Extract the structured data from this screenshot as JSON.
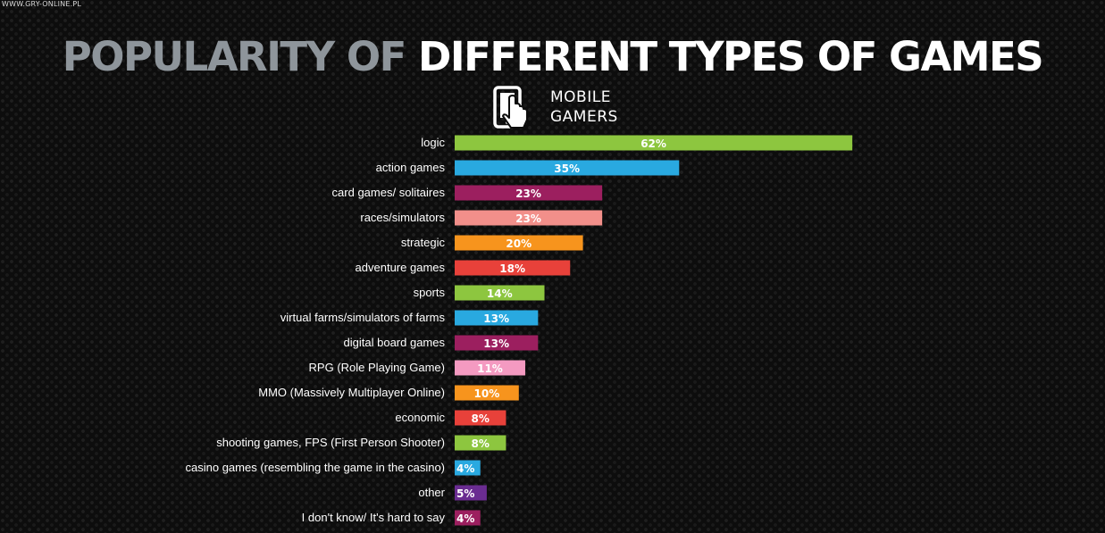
{
  "watermark": "WWW.GRY-ONLINE.PL",
  "title": {
    "part1": "POPULARITY OF ",
    "part2": "DIFFERENT TYPES OF GAMES"
  },
  "legend": {
    "line1": "MOBILE",
    "line2": "GAMERS",
    "icon": "phone-touch-icon"
  },
  "chart_data": {
    "type": "bar",
    "orientation": "horizontal",
    "categories": [
      "logic",
      "action games",
      "card games/ solitaires",
      "races/simulators",
      "strategic",
      "adventure games",
      "sports",
      "virtual farms/simulators of farms",
      "digital board games",
      "RPG (Role Playing Game)",
      "MMO (Massively Multiplayer Online)",
      "economic",
      "shooting games, FPS (First Person Shooter)",
      "casino games (resembling the game in the casino)",
      "other",
      "I don't know/ It's hard to say"
    ],
    "values": [
      62,
      35,
      23,
      23,
      20,
      18,
      14,
      13,
      13,
      11,
      10,
      8,
      8,
      4,
      5,
      4
    ],
    "labels": [
      "62%",
      "35%",
      "23%",
      "23%",
      "20%",
      "18%",
      "14%",
      "13%",
      "13%",
      "11%",
      "10%",
      "8%",
      "8%",
      "4%",
      "5%",
      "4%"
    ],
    "colors": [
      "#8dc63f",
      "#29a9e0",
      "#9c1f5f",
      "#f28f8a",
      "#f7941d",
      "#e8413a",
      "#8dc63f",
      "#29a9e0",
      "#9c1f5f",
      "#f49ac1",
      "#f7941d",
      "#e8413a",
      "#8dc63f",
      "#29a9e0",
      "#6a2c91",
      "#9c1f5f"
    ],
    "unit": "%",
    "grid": false
  }
}
